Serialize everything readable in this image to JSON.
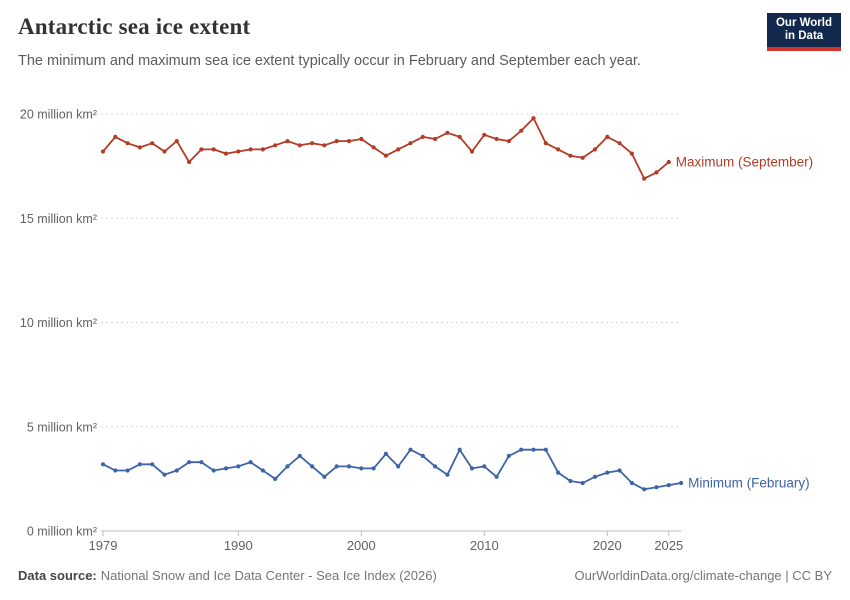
{
  "header": {
    "title": "Antarctic sea ice extent",
    "subtitle": "The minimum and maximum sea ice extent typically occur in February and September each year.",
    "logo": {
      "line1": "Our World",
      "line2": "in Data",
      "bg_color": "#12294d",
      "accent_color": "#d0342c"
    }
  },
  "chart_data": {
    "type": "line",
    "title": "Antarctic sea ice extent",
    "xlabel": "",
    "ylabel": "million km²",
    "xlim": [
      1978.9,
      2026.6
    ],
    "ylim": [
      0,
      21.5
    ],
    "grid": "horizontal-dashed",
    "legend_position": "right-of-line-end",
    "yticks": [
      0,
      5,
      10,
      15,
      20
    ],
    "ytick_labels": [
      "0 million km²",
      "5 million km²",
      "10 million km²",
      "15 million km²",
      "20 million km²"
    ],
    "xticks": [
      1979,
      1990,
      2000,
      2010,
      2020,
      2025
    ],
    "xtick_labels": [
      "1979",
      "1990",
      "2000",
      "2010",
      "2020",
      "2025"
    ],
    "series": [
      {
        "name": "Maximum (September)",
        "color": "#b23c26",
        "start_year": 1979,
        "values": [
          18.2,
          18.9,
          18.6,
          18.4,
          18.6,
          18.2,
          18.7,
          17.7,
          18.3,
          18.3,
          18.1,
          18.2,
          18.3,
          18.3,
          18.5,
          18.7,
          18.5,
          18.6,
          18.5,
          18.7,
          18.7,
          18.8,
          18.4,
          18.0,
          18.3,
          18.6,
          18.9,
          18.8,
          19.1,
          18.9,
          18.2,
          19.0,
          18.8,
          18.7,
          19.2,
          19.8,
          18.6,
          18.3,
          18.0,
          17.9,
          18.3,
          18.9,
          18.6,
          18.1,
          16.9,
          17.2,
          17.7
        ]
      },
      {
        "name": "Minimum (February)",
        "color": "#3d64a9",
        "start_year": 1979,
        "values": [
          3.2,
          2.9,
          2.9,
          3.2,
          3.2,
          2.7,
          2.9,
          3.3,
          3.3,
          2.9,
          3.0,
          3.1,
          3.3,
          2.9,
          2.5,
          3.1,
          3.6,
          3.1,
          2.6,
          3.1,
          3.1,
          3.0,
          3.0,
          3.7,
          3.1,
          3.9,
          3.6,
          3.1,
          2.7,
          3.9,
          3.0,
          3.1,
          2.6,
          3.6,
          3.9,
          3.9,
          3.9,
          2.8,
          2.4,
          2.3,
          2.6,
          2.8,
          2.9,
          2.3,
          2.0,
          2.1,
          2.2,
          2.3
        ]
      }
    ]
  },
  "footer": {
    "source_label": "Data source:",
    "source_text": "National Snow and Ice Data Center - Sea Ice Index (2026)",
    "right_text": "OurWorldinData.org/climate-change | CC BY"
  }
}
